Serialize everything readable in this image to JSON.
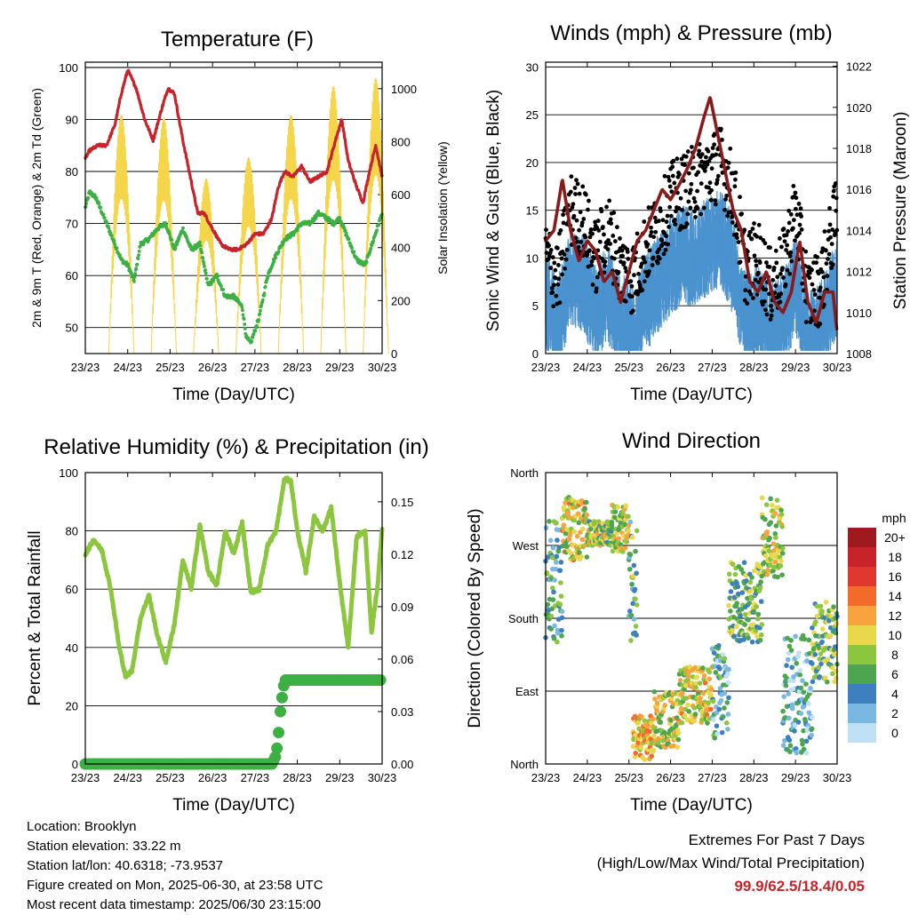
{
  "panels": {
    "temperature": {
      "title": "Temperature (F)",
      "ylabel_left": "2m & 9m T (Red, Orange) & 2m Td (Green)",
      "ylabel_right": "Solar Insolation (Yellow)",
      "xlabel": "Time (Day/UTC)"
    },
    "winds": {
      "title": "Winds (mph) & Pressure (mb)",
      "ylabel_left": "Sonic Wind & Gust (Blue, Black)",
      "ylabel_right": "Station Pressure (Maroon)",
      "xlabel": "Time (Day/UTC)"
    },
    "humidity": {
      "title": "Relative Humidity (%) & Precipitation (in)",
      "ylabel_left": "Percent & Total Rainfall",
      "xlabel": "Time (Day/UTC)"
    },
    "direction": {
      "title": "Wind Direction",
      "ylabel_left": "Direction (Colored By Speed)",
      "xlabel": "Time (Day/UTC)",
      "legend_title": "mph"
    }
  },
  "info": {
    "location": "Location: Brooklyn",
    "elevation": "Station elevation: 33.22 m",
    "latlon": "Station lat/lon: 40.6318; -73.9537",
    "created": "Figure created on Mon, 2025-06-30, at 23:58 UTC",
    "latest": "Most recent data timestamp: 2025/06/30 23:15:00"
  },
  "extremes": {
    "line1": "Extremes For Past 7 Days",
    "line2": "(High/Low/Max Wind/Total Precipitation)",
    "values": "99.9/62.5/18.4/0.05"
  },
  "colors": {
    "temp": "#c8232a",
    "dewpoint": "#3cb043",
    "solar": "#f5d54a",
    "gust": "#000000",
    "wind": "#4a93cf",
    "pressure": "#8b1a1a",
    "rh": "#8cc63f",
    "precip": "#3cb043"
  },
  "chart_data": [
    {
      "type": "line",
      "id": "temperature",
      "x_ticks": [
        "23/23",
        "24/23",
        "25/23",
        "26/23",
        "27/23",
        "28/23",
        "29/23",
        "30/23"
      ],
      "xlim": [
        0,
        7
      ],
      "ylim_left": [
        45,
        101
      ],
      "yticks_left": [
        50,
        60,
        70,
        80,
        90,
        100
      ],
      "ylim_right": [
        0,
        1100
      ],
      "yticks_right": [
        0,
        200,
        400,
        600,
        800,
        1000
      ],
      "grid": true,
      "series": [
        {
          "name": "2m T",
          "axis": "left",
          "style": "line",
          "color": "#c8232a",
          "x": [
            0,
            0.1,
            0.3,
            0.5,
            0.7,
            0.85,
            1.0,
            1.2,
            1.4,
            1.6,
            1.8,
            1.95,
            2.1,
            2.3,
            2.5,
            2.65,
            2.8,
            3.0,
            3.2,
            3.4,
            3.6,
            3.8,
            4.0,
            4.2,
            4.4,
            4.55,
            4.7,
            4.9,
            5.1,
            5.3,
            5.5,
            5.7,
            5.9,
            6.05,
            6.2,
            6.4,
            6.55,
            6.7,
            6.85,
            7.0
          ],
          "values": [
            82.5,
            84,
            85,
            85,
            89,
            95,
            99.5,
            96,
            90,
            86,
            92,
            96,
            95,
            86,
            78,
            72,
            72,
            69,
            66,
            65,
            65,
            66,
            68,
            68,
            71,
            77,
            80,
            79,
            81,
            78,
            79,
            80,
            86,
            90,
            82,
            77,
            74,
            80,
            85,
            79
          ]
        },
        {
          "name": "2m Td",
          "axis": "left",
          "style": "dots",
          "color": "#3cb043",
          "x": [
            0,
            0.1,
            0.25,
            0.4,
            0.55,
            0.7,
            0.85,
            1.0,
            1.15,
            1.3,
            1.5,
            1.7,
            1.9,
            2.1,
            2.3,
            2.5,
            2.7,
            2.9,
            3.1,
            3.3,
            3.5,
            3.7,
            3.8,
            3.9,
            4.1,
            4.3,
            4.5,
            4.7,
            4.9,
            5.1,
            5.3,
            5.5,
            5.7,
            5.85,
            6.0,
            6.2,
            6.4,
            6.6,
            6.8,
            7.0
          ],
          "values": [
            73,
            76,
            75,
            72,
            69,
            66,
            63,
            62,
            59,
            66,
            67,
            69,
            70,
            65,
            69,
            65,
            66,
            58,
            60,
            56,
            56,
            54,
            48,
            47,
            52,
            60,
            64,
            67,
            68,
            70,
            70,
            72,
            71,
            70,
            71,
            67,
            63,
            62,
            67,
            72
          ]
        },
        {
          "name": "Solar Insolation",
          "axis": "right",
          "style": "diurnal",
          "color": "#f5d54a",
          "peaks_x": [
            0.85,
            1.85,
            2.85,
            3.85,
            4.85,
            5.85,
            6.85
          ],
          "peaks": [
            900,
            890,
            660,
            740,
            900,
            1010,
            1040
          ]
        }
      ]
    },
    {
      "type": "scatter",
      "id": "winds",
      "x_ticks": [
        "23/23",
        "24/23",
        "25/23",
        "26/23",
        "27/23",
        "28/23",
        "29/23",
        "30/23"
      ],
      "xlim": [
        0,
        7
      ],
      "ylim_left": [
        0,
        30.5
      ],
      "yticks_left": [
        0,
        5,
        10,
        15,
        20,
        25,
        30
      ],
      "ylim_right": [
        1008,
        1022.2
      ],
      "yticks_right": [
        1008,
        1010,
        1012,
        1014,
        1016,
        1018,
        1020,
        1022
      ],
      "grid": true,
      "series": [
        {
          "name": "Gust",
          "axis": "left",
          "style": "dots",
          "color": "#000000",
          "x": [
            0,
            0.3,
            0.6,
            0.9,
            1.2,
            1.5,
            1.8,
            2.1,
            2.4,
            2.7,
            3.0,
            3.3,
            3.6,
            3.9,
            4.2,
            4.5,
            4.8,
            5.1,
            5.4,
            5.7,
            6.0,
            6.3,
            6.6,
            7.0
          ],
          "values": [
            10,
            8,
            15,
            14,
            10,
            13,
            9,
            8,
            11,
            13,
            16,
            17,
            18,
            19,
            20,
            17,
            9,
            10,
            7,
            9,
            15,
            6,
            7,
            15
          ]
        },
        {
          "name": "Sonic Wind",
          "axis": "left",
          "style": "fill",
          "color": "#4a93cf",
          "x": [
            0,
            0.3,
            0.6,
            0.9,
            1.2,
            1.5,
            1.8,
            2.1,
            2.4,
            2.7,
            3.0,
            3.3,
            3.6,
            3.9,
            4.2,
            4.5,
            4.8,
            5.1,
            5.4,
            5.7,
            6.0,
            6.3,
            6.6,
            7.0
          ],
          "values": [
            7,
            5,
            10,
            9,
            6,
            8,
            5,
            4,
            7,
            9,
            11,
            12,
            12,
            13,
            14,
            11,
            5,
            6,
            4,
            5,
            9,
            3,
            4,
            9
          ]
        },
        {
          "name": "Station Pressure",
          "axis": "right",
          "style": "line",
          "color": "#8b1a1a",
          "x": [
            0,
            0.2,
            0.4,
            0.6,
            0.8,
            1.0,
            1.2,
            1.4,
            1.6,
            1.8,
            2.0,
            2.2,
            2.4,
            2.6,
            2.8,
            3.0,
            3.2,
            3.4,
            3.6,
            3.8,
            3.95,
            4.1,
            4.3,
            4.5,
            4.7,
            4.9,
            5.1,
            5.3,
            5.5,
            5.7,
            5.9,
            6.1,
            6.3,
            6.5,
            6.7,
            6.9,
            7.0
          ],
          "values": [
            1013.5,
            1014,
            1016.5,
            1014,
            1012.5,
            1013.5,
            1013,
            1011.5,
            1012,
            1010.5,
            1012,
            1013.5,
            1014,
            1015,
            1016,
            1015.5,
            1016.2,
            1017,
            1018,
            1019.5,
            1020.5,
            1019,
            1017,
            1015,
            1014,
            1011.5,
            1011,
            1012,
            1010.5,
            1010,
            1011,
            1013.5,
            1010.5,
            1009.5,
            1011,
            1011,
            1009
          ]
        }
      ]
    },
    {
      "type": "line",
      "id": "humidity",
      "x_ticks": [
        "23/23",
        "24/23",
        "25/23",
        "26/23",
        "27/23",
        "28/23",
        "29/23",
        "30/23"
      ],
      "xlim": [
        0,
        7
      ],
      "ylim_left": [
        0,
        100
      ],
      "yticks_left": [
        0,
        20,
        40,
        60,
        80,
        100
      ],
      "ylim_right": [
        0,
        0.1667
      ],
      "yticks_right": [
        "0.00",
        "0.03",
        "0.06",
        "0.09",
        "0.12",
        "0.15"
      ],
      "grid": true,
      "series": [
        {
          "name": "Relative Humidity",
          "axis": "left",
          "style": "line",
          "color": "#8cc63f",
          "x": [
            0,
            0.2,
            0.4,
            0.6,
            0.8,
            0.95,
            1.1,
            1.3,
            1.5,
            1.7,
            1.9,
            2.1,
            2.3,
            2.5,
            2.7,
            2.9,
            3.1,
            3.3,
            3.5,
            3.7,
            3.9,
            4.1,
            4.3,
            4.5,
            4.7,
            4.85,
            5.0,
            5.2,
            5.4,
            5.6,
            5.8,
            6.0,
            6.2,
            6.4,
            6.6,
            6.75,
            6.9,
            7.0
          ],
          "values": [
            72,
            77,
            73,
            60,
            40,
            30,
            32,
            50,
            58,
            44,
            35,
            48,
            70,
            60,
            82,
            66,
            61,
            80,
            72,
            83,
            59,
            60,
            75,
            80,
            98,
            97,
            80,
            66,
            85,
            80,
            88,
            62,
            40,
            78,
            80,
            45,
            62,
            81
          ]
        },
        {
          "name": "Total Precipitation",
          "axis": "right",
          "style": "dots",
          "color": "#3cb043",
          "x": [
            0,
            0.5,
            1.0,
            1.5,
            2.0,
            2.5,
            3.0,
            3.5,
            4.0,
            4.4,
            4.5,
            4.55,
            4.6,
            4.65,
            4.7,
            5.0,
            5.5,
            6.0,
            6.5,
            7.0
          ],
          "values": [
            0,
            0,
            0,
            0,
            0,
            0,
            0,
            0,
            0,
            0,
            0.005,
            0.015,
            0.03,
            0.04,
            0.048,
            0.048,
            0.048,
            0.048,
            0.048,
            0.048
          ]
        }
      ]
    },
    {
      "type": "scatter",
      "id": "direction",
      "x_ticks": [
        "23/23",
        "24/23",
        "25/23",
        "26/23",
        "27/23",
        "28/23",
        "29/23",
        "30/23"
      ],
      "xlim": [
        0,
        7
      ],
      "ylim": [
        0,
        360
      ],
      "yticks": [
        "North",
        "East",
        "South",
        "West",
        "North"
      ],
      "grid": true,
      "colorbar": {
        "title": "mph",
        "labels": [
          "20+",
          "18",
          "16",
          "14",
          "12",
          "10",
          "8",
          "6",
          "4",
          "2",
          "0"
        ],
        "colors": [
          "#9e1a1e",
          "#c8232a",
          "#e0382e",
          "#f26b2a",
          "#f9a340",
          "#e8d84a",
          "#8cc63f",
          "#4da64f",
          "#3d7fbf",
          "#7ab8e4",
          "#bfe0f5"
        ]
      },
      "segments": [
        {
          "x": [
            0,
            0.4
          ],
          "dir": [
            150,
            300
          ],
          "speed": 5
        },
        {
          "x": [
            0.4,
            1.0
          ],
          "dir": [
            250,
            330
          ],
          "speed": 10
        },
        {
          "x": [
            1.0,
            1.6
          ],
          "dir": [
            270,
            300
          ],
          "speed": 8
        },
        {
          "x": [
            1.6,
            2.0
          ],
          "dir": [
            260,
            320
          ],
          "speed": 9
        },
        {
          "x": [
            2.0,
            2.2
          ],
          "dir": [
            150,
            300
          ],
          "speed": 6
        },
        {
          "x": [
            2.1,
            2.6
          ],
          "dir": [
            5,
            60
          ],
          "speed": 11
        },
        {
          "x": [
            2.6,
            3.2
          ],
          "dir": [
            20,
            90
          ],
          "speed": 9
        },
        {
          "x": [
            3.2,
            4.0
          ],
          "dir": [
            50,
            120
          ],
          "speed": 10
        },
        {
          "x": [
            4.0,
            4.4
          ],
          "dir": [
            30,
            150
          ],
          "speed": 4
        },
        {
          "x": [
            4.4,
            5.2
          ],
          "dir": [
            150,
            250
          ],
          "speed": 7
        },
        {
          "x": [
            5.2,
            5.7
          ],
          "dir": [
            230,
            330
          ],
          "speed": 9
        },
        {
          "x": [
            5.7,
            6.4
          ],
          "dir": [
            10,
            160
          ],
          "speed": 3
        },
        {
          "x": [
            6.4,
            7.0
          ],
          "dir": [
            100,
            200
          ],
          "speed": 7
        }
      ]
    }
  ]
}
